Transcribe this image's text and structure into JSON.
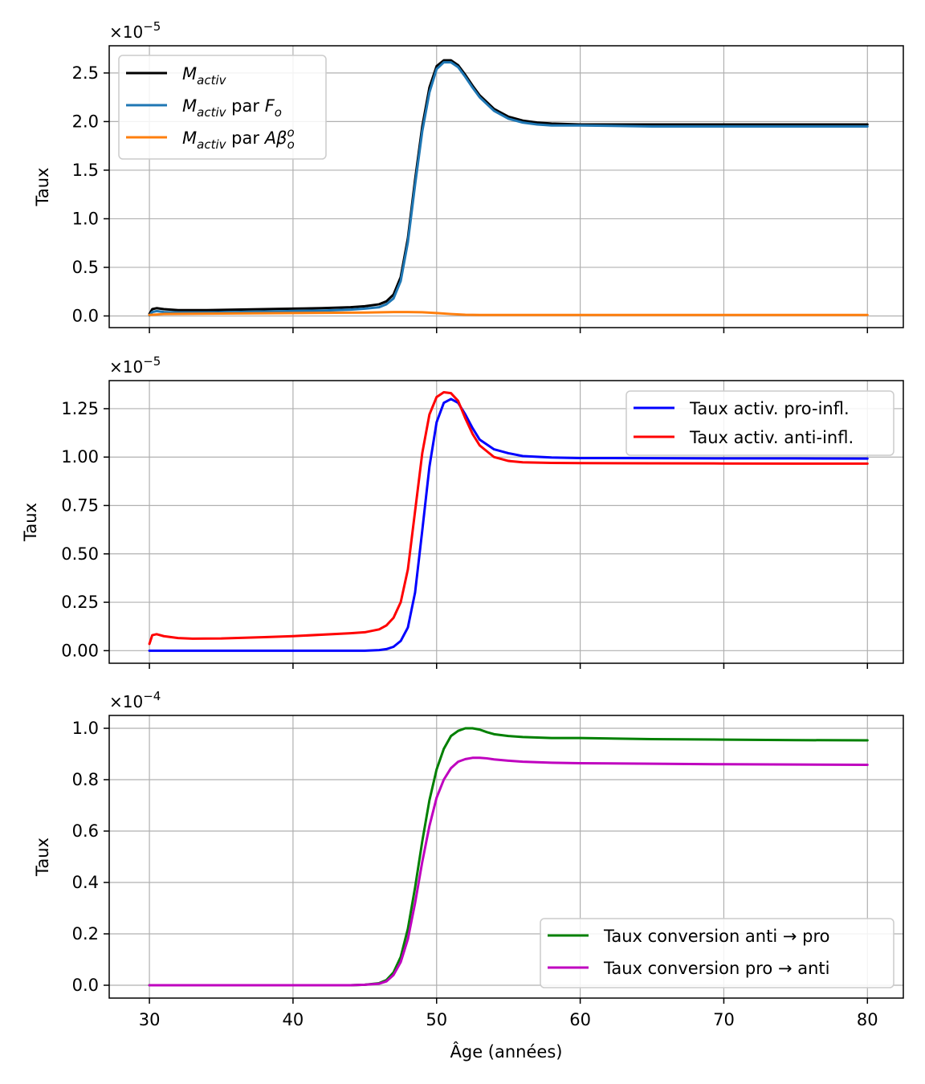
{
  "chart_data": [
    {
      "type": "line",
      "ylabel": "Taux",
      "xlabel": "",
      "offset_text": {
        "base": "×10",
        "exp": "−5"
      },
      "xlim": [
        27.2,
        82.5
      ],
      "ylim": [
        -0.12,
        2.78
      ],
      "xticks": [
        30,
        40,
        50,
        60,
        70,
        80
      ],
      "show_x_tick_labels": false,
      "yticks": [
        0.0,
        0.5,
        1.0,
        1.5,
        2.0,
        2.5
      ],
      "ytick_labels": [
        "0.0",
        "0.5",
        "1.0",
        "1.5",
        "2.0",
        "2.5"
      ],
      "grid": true,
      "legend_position": "upper-left",
      "series": [
        {
          "name": "M_activ",
          "legend": {
            "main": "M",
            "sub": "activ",
            "suffix": "",
            "italic_main": true
          },
          "color": "#000000",
          "x": [
            30,
            30.2,
            30.5,
            31,
            32,
            34,
            36,
            38,
            40,
            42,
            44,
            45,
            46,
            46.5,
            47,
            47.5,
            48,
            48.5,
            49,
            49.5,
            50,
            50.5,
            51,
            51.5,
            52,
            52.5,
            53,
            54,
            55,
            56,
            57,
            58,
            60,
            65,
            70,
            75,
            80
          ],
          "y": [
            0.02,
            0.07,
            0.08,
            0.07,
            0.06,
            0.06,
            0.065,
            0.07,
            0.075,
            0.08,
            0.09,
            0.1,
            0.12,
            0.15,
            0.22,
            0.4,
            0.8,
            1.4,
            1.95,
            2.35,
            2.57,
            2.63,
            2.63,
            2.58,
            2.48,
            2.37,
            2.27,
            2.13,
            2.05,
            2.01,
            1.99,
            1.98,
            1.97,
            1.97,
            1.97,
            1.97,
            1.97
          ]
        },
        {
          "name": "M_activ par F_o",
          "legend": {
            "main": "M",
            "sub": "activ",
            "suffix": " par F_o",
            "italic_main": true
          },
          "color": "#1f77b4",
          "x": [
            30,
            30.2,
            30.5,
            31,
            32,
            34,
            36,
            38,
            40,
            42,
            44,
            45,
            46,
            46.5,
            47,
            47.5,
            48,
            48.5,
            49,
            49.5,
            50,
            50.5,
            51,
            51.5,
            52,
            52.5,
            53,
            54,
            55,
            56,
            57,
            58,
            60,
            65,
            70,
            75,
            80
          ],
          "y": [
            0.005,
            0.04,
            0.05,
            0.04,
            0.035,
            0.035,
            0.04,
            0.045,
            0.05,
            0.055,
            0.065,
            0.075,
            0.09,
            0.12,
            0.18,
            0.36,
            0.76,
            1.35,
            1.9,
            2.3,
            2.54,
            2.61,
            2.61,
            2.56,
            2.46,
            2.35,
            2.25,
            2.11,
            2.03,
            1.99,
            1.97,
            1.96,
            1.96,
            1.95,
            1.95,
            1.95,
            1.95
          ]
        },
        {
          "name": "M_activ par Aβ_o^o",
          "legend": {
            "main": "M",
            "sub": "activ",
            "suffix": " par Aβ_o^o",
            "italic_main": true
          },
          "color": "#ff7f0e",
          "x": [
            30,
            31,
            35,
            40,
            45,
            47,
            48,
            49,
            50,
            51,
            52,
            53,
            55,
            60,
            70,
            80
          ],
          "y": [
            0.01,
            0.02,
            0.025,
            0.03,
            0.035,
            0.04,
            0.04,
            0.038,
            0.03,
            0.02,
            0.012,
            0.01,
            0.01,
            0.01,
            0.01,
            0.01
          ]
        }
      ]
    },
    {
      "type": "line",
      "ylabel": "Taux",
      "xlabel": "",
      "offset_text": {
        "base": "×10",
        "exp": "−5"
      },
      "xlim": [
        27.2,
        82.5
      ],
      "ylim": [
        -0.065,
        1.395
      ],
      "xticks": [
        30,
        40,
        50,
        60,
        70,
        80
      ],
      "show_x_tick_labels": false,
      "yticks": [
        0.0,
        0.25,
        0.5,
        0.75,
        1.0,
        1.25
      ],
      "ytick_labels": [
        "0.00",
        "0.25",
        "0.50",
        "0.75",
        "1.00",
        "1.25"
      ],
      "grid": true,
      "legend_position": "upper-right",
      "series": [
        {
          "name": "Taux activ. pro-infl.",
          "color": "#0000ff",
          "x": [
            30,
            35,
            40,
            44,
            45,
            46,
            46.5,
            47,
            47.5,
            48,
            48.5,
            49,
            49.5,
            50,
            50.5,
            51,
            51.5,
            52,
            52.5,
            53,
            54,
            55,
            56,
            58,
            60,
            65,
            70,
            75,
            80
          ],
          "y": [
            0.0,
            0.0,
            0.0,
            0.0,
            0.0,
            0.003,
            0.008,
            0.02,
            0.05,
            0.12,
            0.3,
            0.62,
            0.95,
            1.18,
            1.28,
            1.3,
            1.28,
            1.22,
            1.15,
            1.09,
            1.04,
            1.02,
            1.005,
            0.998,
            0.995,
            0.994,
            0.993,
            0.993,
            0.992
          ]
        },
        {
          "name": "Taux activ. anti-infl.",
          "color": "#ff0000",
          "x": [
            30,
            30.2,
            30.5,
            31,
            32,
            33,
            35,
            38,
            40,
            44,
            45,
            46,
            46.5,
            47,
            47.5,
            48,
            48.5,
            49,
            49.5,
            50,
            50.5,
            51,
            51.5,
            52,
            52.5,
            53,
            54,
            55,
            56,
            58,
            60,
            65,
            70,
            75,
            80
          ],
          "y": [
            0.035,
            0.08,
            0.085,
            0.075,
            0.065,
            0.062,
            0.063,
            0.07,
            0.075,
            0.09,
            0.095,
            0.11,
            0.13,
            0.17,
            0.25,
            0.42,
            0.72,
            1.02,
            1.22,
            1.31,
            1.335,
            1.33,
            1.29,
            1.2,
            1.12,
            1.06,
            1.0,
            0.98,
            0.973,
            0.97,
            0.969,
            0.968,
            0.967,
            0.966,
            0.966
          ]
        }
      ]
    },
    {
      "type": "line",
      "ylabel": "Taux",
      "xlabel": "Âge (années)",
      "offset_text": {
        "base": "×10",
        "exp": "−4"
      },
      "xlim": [
        27.2,
        82.5
      ],
      "ylim": [
        -0.05,
        1.05
      ],
      "xticks": [
        30,
        40,
        50,
        60,
        70,
        80
      ],
      "xtick_labels": [
        "30",
        "40",
        "50",
        "60",
        "70",
        "80"
      ],
      "show_x_tick_labels": true,
      "yticks": [
        0.0,
        0.2,
        0.4,
        0.6,
        0.8,
        1.0
      ],
      "ytick_labels": [
        "0.0",
        "0.2",
        "0.4",
        "0.6",
        "0.8",
        "1.0"
      ],
      "grid": true,
      "legend_position": "lower-right",
      "series": [
        {
          "name": "Taux conversion anti → pro",
          "color": "#008000",
          "x": [
            30,
            40,
            44,
            45,
            46,
            46.5,
            47,
            47.5,
            48,
            48.5,
            49,
            49.5,
            50,
            50.5,
            51,
            51.5,
            52,
            52.5,
            53,
            53.5,
            54,
            55,
            56,
            58,
            60,
            65,
            70,
            75,
            80
          ],
          "y": [
            0.0,
            0.0,
            0.0,
            0.002,
            0.008,
            0.02,
            0.05,
            0.11,
            0.22,
            0.38,
            0.56,
            0.72,
            0.84,
            0.92,
            0.97,
            0.99,
            1.0,
            1.0,
            0.995,
            0.985,
            0.977,
            0.97,
            0.966,
            0.962,
            0.962,
            0.958,
            0.956,
            0.954,
            0.953
          ]
        },
        {
          "name": "Taux conversion pro → anti",
          "color": "#bf00bf",
          "x": [
            30,
            40,
            44,
            45,
            46,
            46.5,
            47,
            47.5,
            48,
            48.5,
            49,
            49.5,
            50,
            50.5,
            51,
            51.5,
            52,
            52.5,
            53,
            53.5,
            54,
            55,
            56,
            58,
            60,
            65,
            70,
            75,
            80
          ],
          "y": [
            0.0,
            0.0,
            0.0,
            0.002,
            0.006,
            0.015,
            0.04,
            0.09,
            0.18,
            0.32,
            0.48,
            0.62,
            0.73,
            0.8,
            0.845,
            0.87,
            0.88,
            0.885,
            0.885,
            0.883,
            0.879,
            0.874,
            0.87,
            0.866,
            0.864,
            0.862,
            0.86,
            0.859,
            0.858
          ]
        }
      ]
    }
  ]
}
